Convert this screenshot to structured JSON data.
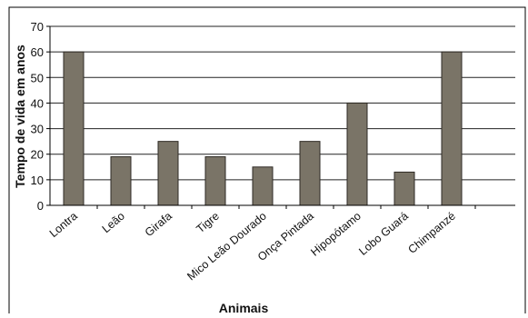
{
  "chart_data": {
    "type": "bar",
    "title": "",
    "xlabel": "Animais",
    "ylabel": "Tempo de vida em anos",
    "categories": [
      "Lontra",
      "Leão",
      "Girafa",
      "Tigre",
      "Mico Leão Dourado",
      "Onça Pintada",
      "Hipopótamo",
      "Lobo Guará",
      "Chimpanzé"
    ],
    "values": [
      60,
      19,
      25,
      19,
      15,
      25,
      40,
      13,
      60
    ],
    "ylim": [
      0,
      70
    ],
    "yticks": [
      "0",
      "10",
      "20",
      "30",
      "40",
      "50",
      "60",
      "70"
    ],
    "grid": true,
    "legend": "none",
    "colors": {
      "bar": "#7a7467",
      "bar_stroke": "#2e2a24",
      "grid": "#222222",
      "background": "#ffffff"
    }
  }
}
